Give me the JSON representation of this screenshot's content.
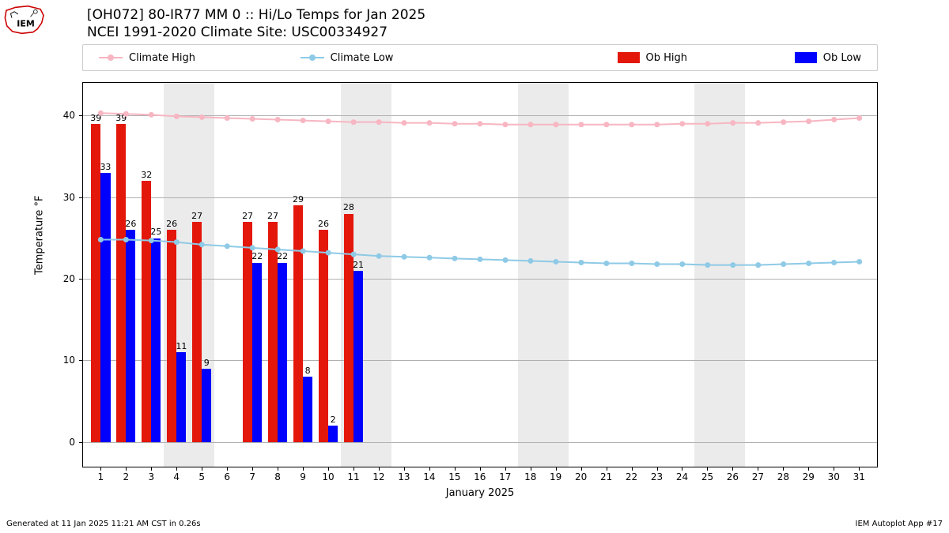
{
  "title_line1": "[OH072] 80-IR77 MM 0 :: Hi/Lo Temps for Jan 2025",
  "title_line2": "NCEI 1991-2020 Climate Site: USC00334927",
  "footer_left": "Generated at 11 Jan 2025 11:21 AM CST in 0.26s",
  "footer_right": "IEM Autoplot App #17",
  "legend": {
    "climate_high": "Climate High",
    "climate_low": "Climate Low",
    "ob_high": "Ob High",
    "ob_low": "Ob Low"
  },
  "axes": {
    "xlabel": "January 2025",
    "ylabel": "Temperature °F",
    "ymin": -3,
    "ymax": 44,
    "yticks": [
      0,
      10,
      20,
      30,
      40
    ],
    "xmin": 0.3,
    "xmax": 31.7,
    "days": [
      1,
      2,
      3,
      4,
      5,
      6,
      7,
      8,
      9,
      10,
      11,
      12,
      13,
      14,
      15,
      16,
      17,
      18,
      19,
      20,
      21,
      22,
      23,
      24,
      25,
      26,
      27,
      28,
      29,
      30,
      31
    ]
  },
  "colors": {
    "climate_high": "#f7b6c2",
    "climate_low": "#8ecae6",
    "ob_high": "#e3170a",
    "ob_low": "#0000ff",
    "grid": "#b0b0b0",
    "weekend": "#ebebeb",
    "background": "#ffffff",
    "border": "#000000"
  },
  "bar_width_days": 0.38,
  "weekends": [
    [
      4,
      5
    ],
    [
      11,
      12
    ],
    [
      18,
      19
    ],
    [
      25,
      26
    ]
  ],
  "climate_high_series": [
    40.3,
    40.2,
    40.1,
    39.9,
    39.8,
    39.7,
    39.6,
    39.5,
    39.4,
    39.3,
    39.2,
    39.2,
    39.1,
    39.1,
    39.0,
    39.0,
    38.9,
    38.9,
    38.9,
    38.9,
    38.9,
    38.9,
    38.9,
    39.0,
    39.0,
    39.1,
    39.1,
    39.2,
    39.3,
    39.5,
    39.7
  ],
  "climate_low_series": [
    24.8,
    24.8,
    24.7,
    24.5,
    24.2,
    24.0,
    23.8,
    23.6,
    23.4,
    23.2,
    23.0,
    22.8,
    22.7,
    22.6,
    22.5,
    22.4,
    22.3,
    22.2,
    22.1,
    22.0,
    21.9,
    21.9,
    21.8,
    21.8,
    21.7,
    21.7,
    21.7,
    21.8,
    21.9,
    22.0,
    22.1
  ],
  "ob_high": [
    39,
    39,
    32,
    26,
    27,
    null,
    27,
    27,
    29,
    26,
    28
  ],
  "ob_low": [
    33,
    26,
    25,
    11,
    9,
    null,
    22,
    22,
    8,
    2,
    21
  ]
}
